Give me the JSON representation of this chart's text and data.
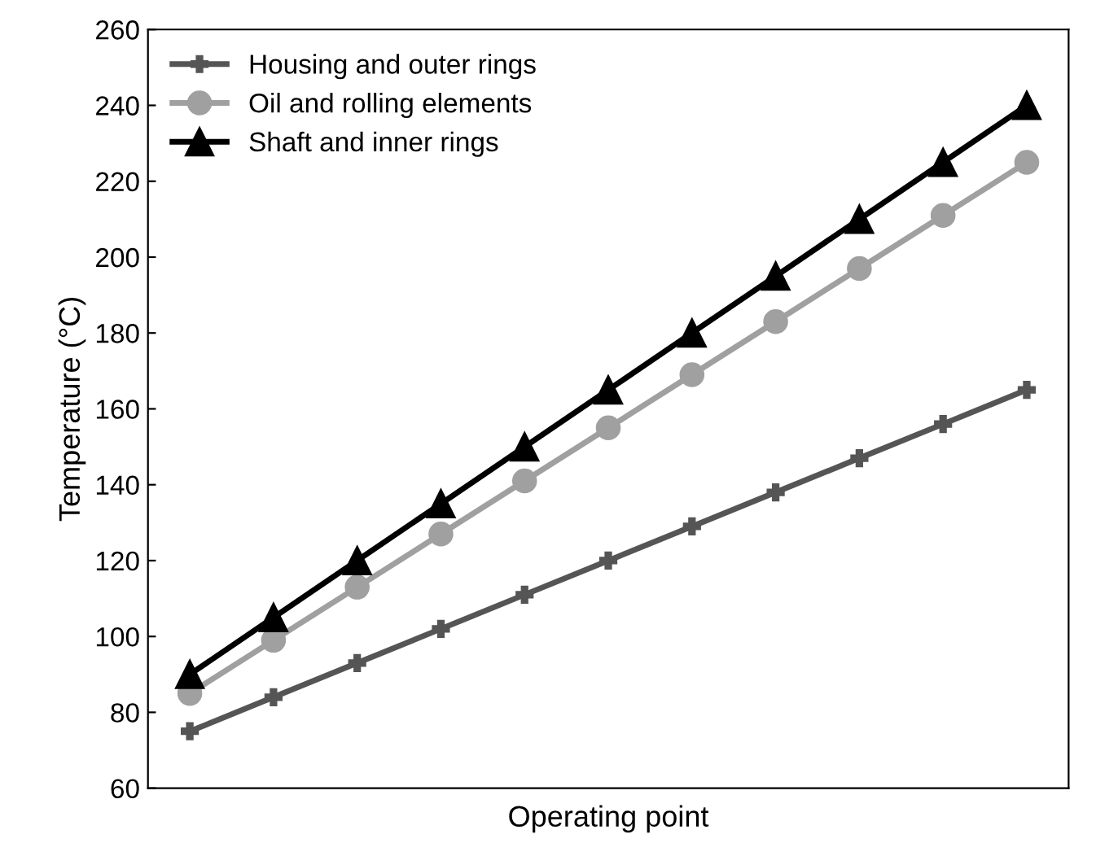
{
  "chart_data": {
    "type": "line",
    "xlabel": "Operating point",
    "ylabel": "Temperature (°C)",
    "categories": [
      null,
      null,
      null,
      null,
      null,
      null,
      null,
      null,
      null,
      null,
      null
    ],
    "series": [
      {
        "name": "Housing and outer rings",
        "color": "#555555",
        "marker": "cross",
        "values": [
          75,
          84,
          93,
          102,
          111,
          120,
          129,
          138,
          147,
          156,
          165
        ]
      },
      {
        "name": "Oil and rolling elements",
        "color": "#a0a0a0",
        "marker": "circle",
        "values": [
          85,
          99,
          113,
          127,
          141,
          155,
          169,
          183,
          197,
          211,
          225
        ]
      },
      {
        "name": "Shaft and inner rings",
        "color": "#000000",
        "marker": "triangle",
        "values": [
          90,
          105,
          120,
          135,
          150,
          165,
          180,
          195,
          210,
          225,
          240
        ]
      }
    ],
    "ylim": [
      60,
      260
    ],
    "yticks": [
      60,
      80,
      100,
      120,
      140,
      160,
      180,
      200,
      220,
      240,
      260
    ],
    "grid": false,
    "legend": "top left",
    "line_style": "solid"
  }
}
